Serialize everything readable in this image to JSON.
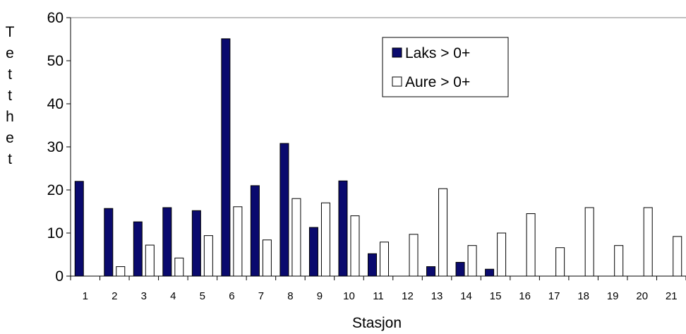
{
  "chart_data": {
    "type": "bar",
    "categories": [
      "1",
      "2",
      "3",
      "4",
      "5",
      "6",
      "7",
      "8",
      "9",
      "10",
      "11",
      "12",
      "13",
      "14",
      "15",
      "16",
      "17",
      "18",
      "19",
      "20",
      "21"
    ],
    "series": [
      {
        "name": "Laks > 0+",
        "color": "#0a0a6e",
        "values": [
          22,
          15.7,
          12.6,
          15.9,
          15.2,
          55.1,
          21,
          30.8,
          11.3,
          22.1,
          5.2,
          0,
          2.2,
          3.2,
          1.6,
          0,
          0,
          0,
          0,
          0,
          0
        ]
      },
      {
        "name": "Aure > 0+",
        "color": "#ffffff",
        "values": [
          0,
          2.2,
          7.2,
          4.2,
          9.4,
          16.1,
          8.4,
          18,
          17,
          14,
          7.9,
          9.7,
          20.3,
          7.1,
          10,
          14.5,
          6.6,
          15.9,
          7.1,
          15.9,
          9.2
        ]
      }
    ],
    "xlabel": "Stasjon",
    "ylabel": "Tetthet",
    "ylim": [
      0,
      60
    ],
    "yticks": [
      0,
      10,
      20,
      30,
      40,
      50,
      60
    ],
    "grid": false,
    "legend": "top-center"
  }
}
